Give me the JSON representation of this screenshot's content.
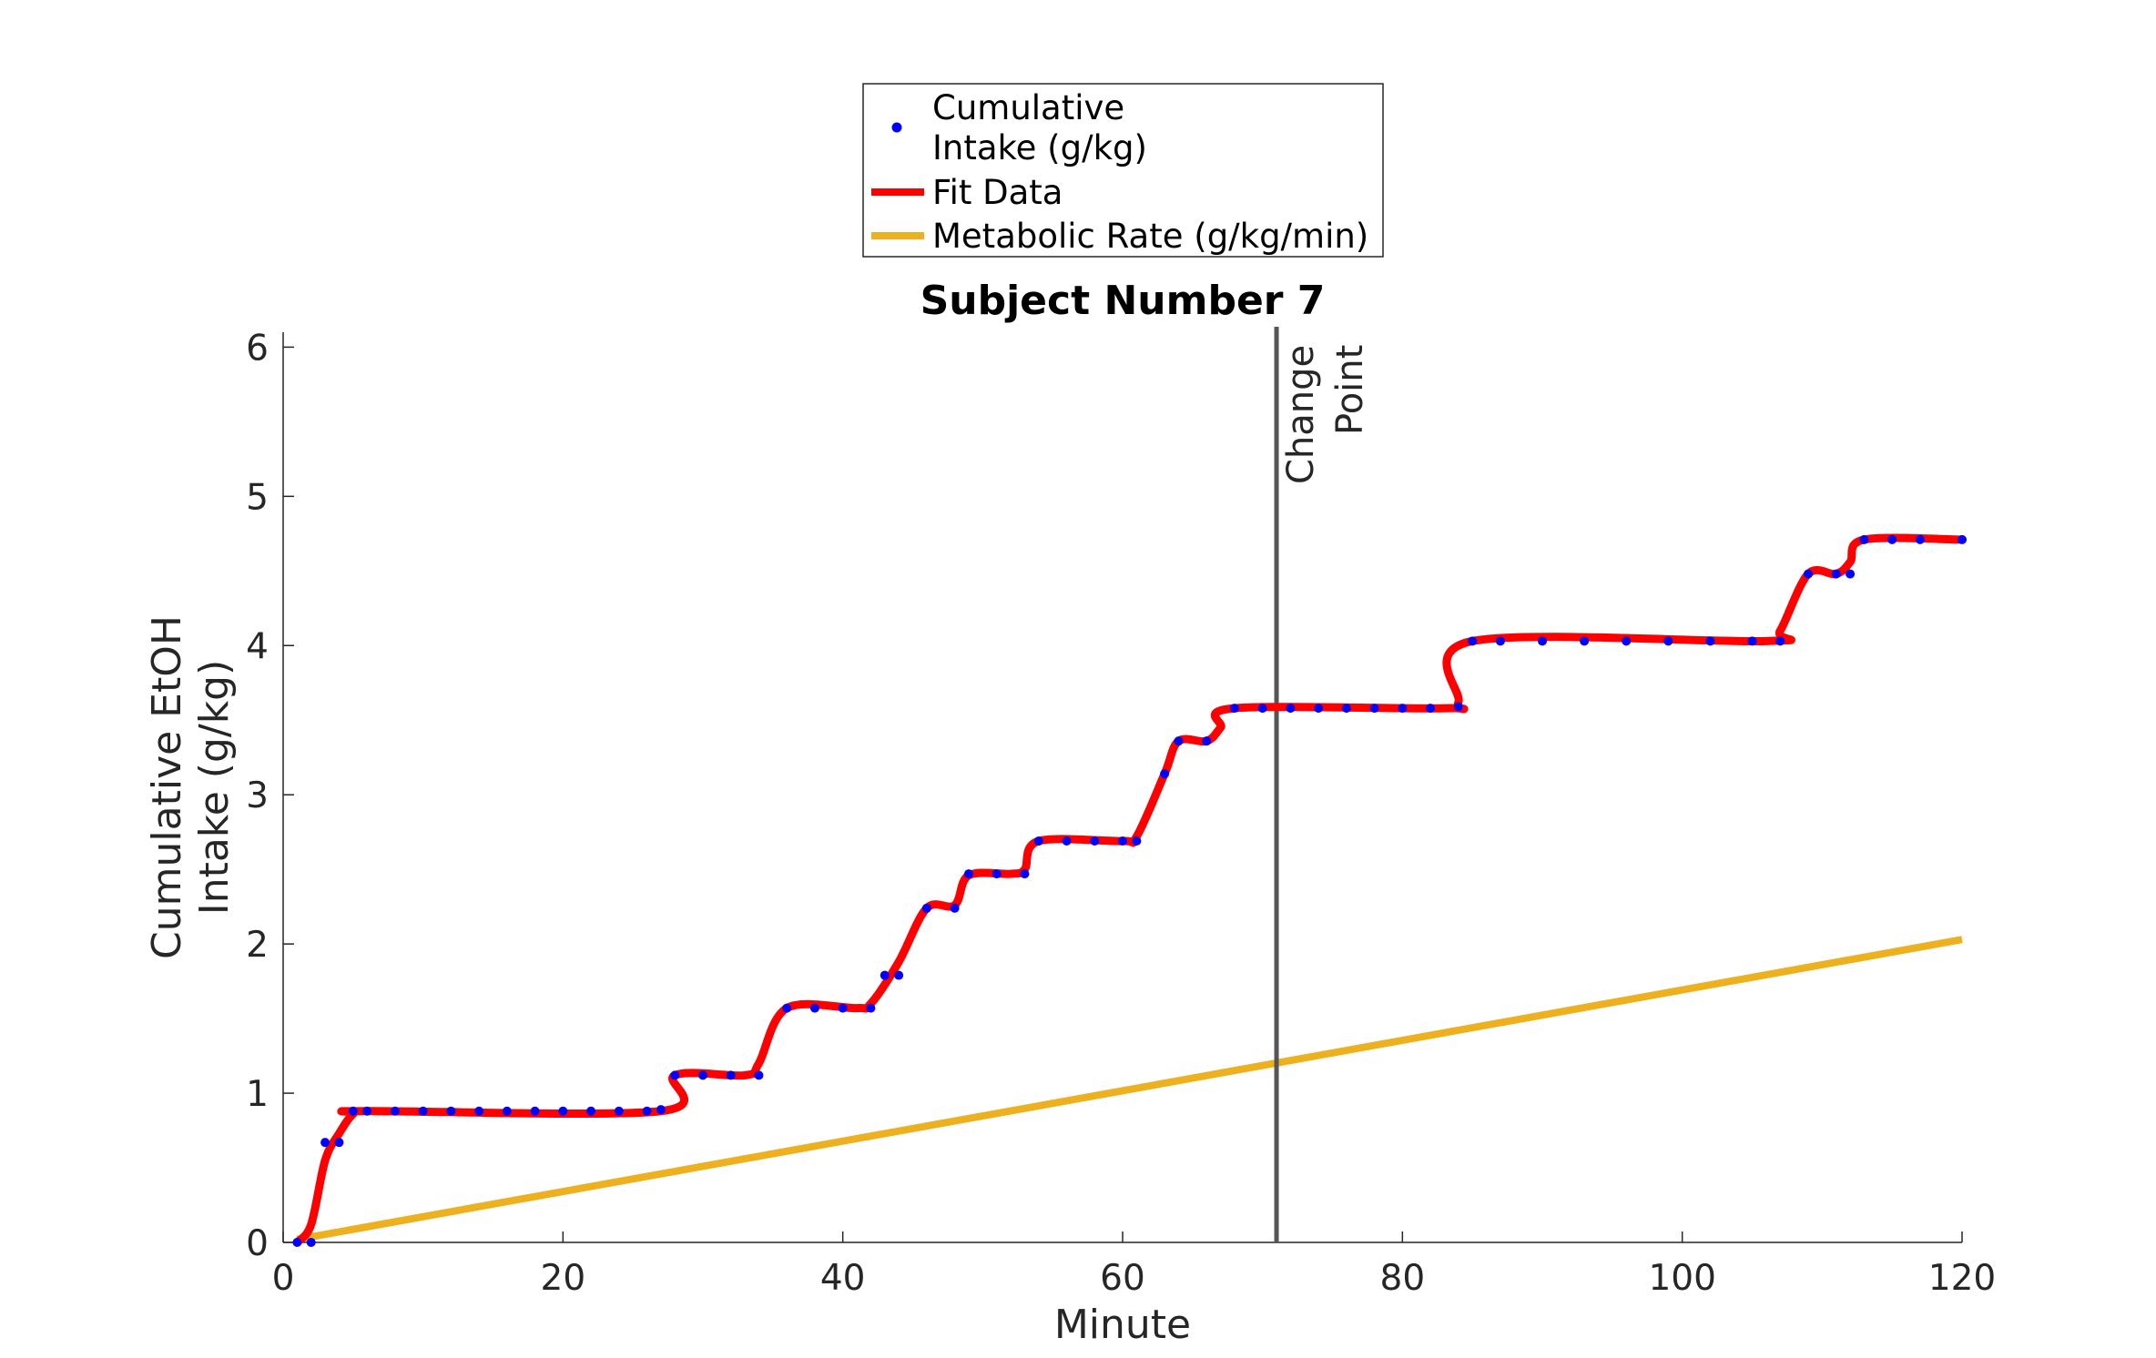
{
  "chart_data": {
    "type": "line",
    "title": "Subject Number 7",
    "xlabel": "Minute",
    "ylabel": [
      "Cumulative EtOH",
      "Intake (g/kg)"
    ],
    "xlim": [
      0,
      120
    ],
    "ylim": [
      0,
      6.1
    ],
    "xticks": [
      0,
      20,
      40,
      60,
      80,
      100,
      120
    ],
    "xtick_labels": [
      "0",
      "20",
      "40",
      "60",
      "80",
      "100",
      "120"
    ],
    "yticks": [
      0,
      1,
      2,
      3,
      4,
      5,
      6
    ],
    "ytick_labels": [
      "0",
      "1",
      "2",
      "3",
      "4",
      "5",
      "6"
    ],
    "grid": false,
    "legend_placement": "top-center, outside plot area",
    "series": [
      {
        "name": "Cumulative Intake (g/kg)",
        "legend_lines": [
          "Cumulative",
          "Intake (g/kg)"
        ],
        "kind": "scatter",
        "color": "#0000ff",
        "x": [
          1,
          2,
          3,
          4,
          5,
          6,
          8,
          10,
          12,
          14,
          16,
          18,
          20,
          22,
          24,
          26,
          27,
          28,
          30,
          32,
          34,
          36,
          38,
          40,
          42,
          43,
          44,
          46,
          48,
          49,
          51,
          53,
          54,
          56,
          58,
          60,
          61,
          63,
          64,
          66,
          68,
          70,
          72,
          74,
          76,
          78,
          80,
          82,
          84,
          85,
          87,
          90,
          93,
          96,
          99,
          102,
          105,
          107,
          109,
          111,
          112,
          113,
          115,
          117,
          120
        ],
        "y": [
          0,
          0,
          0.67,
          0.67,
          0.88,
          0.88,
          0.88,
          0.88,
          0.88,
          0.88,
          0.88,
          0.88,
          0.88,
          0.88,
          0.88,
          0.88,
          0.89,
          1.12,
          1.12,
          1.12,
          1.12,
          1.57,
          1.57,
          1.57,
          1.57,
          1.79,
          1.79,
          2.24,
          2.24,
          2.47,
          2.47,
          2.47,
          2.69,
          2.69,
          2.69,
          2.69,
          2.69,
          3.14,
          3.36,
          3.36,
          3.58,
          3.58,
          3.58,
          3.58,
          3.58,
          3.58,
          3.58,
          3.58,
          3.59,
          4.03,
          4.03,
          4.03,
          4.03,
          4.03,
          4.03,
          4.03,
          4.03,
          4.03,
          4.48,
          4.48,
          4.48,
          4.71,
          4.71,
          4.71,
          4.71
        ]
      },
      {
        "name": "Fit Data",
        "kind": "line",
        "color": "#ff0000",
        "x": [
          1,
          2,
          3,
          4,
          5,
          6,
          27,
          28,
          33,
          34,
          36,
          41,
          42,
          44,
          46,
          48,
          49,
          52,
          53,
          54,
          60,
          61,
          63,
          64,
          66,
          67,
          68,
          83,
          84,
          85,
          106,
          107,
          109,
          111,
          112,
          113,
          120
        ],
        "y": [
          0,
          0.12,
          0.55,
          0.73,
          0.86,
          0.88,
          0.88,
          1.12,
          1.12,
          1.2,
          1.57,
          1.57,
          1.6,
          1.88,
          2.24,
          2.26,
          2.46,
          2.47,
          2.5,
          2.69,
          2.69,
          2.72,
          3.14,
          3.36,
          3.36,
          3.45,
          3.58,
          3.58,
          3.62,
          4.03,
          4.03,
          4.1,
          4.48,
          4.48,
          4.56,
          4.71,
          4.71
        ]
      },
      {
        "name": "Metabolic Rate (g/kg/min)",
        "kind": "line",
        "color": "#edb120",
        "x": [
          1,
          120
        ],
        "y": [
          0.02,
          2.03
        ]
      }
    ],
    "annotations": [
      {
        "type": "vline",
        "x": 71,
        "label_lines": [
          "Change",
          "Point"
        ],
        "color": "#555555"
      }
    ]
  }
}
